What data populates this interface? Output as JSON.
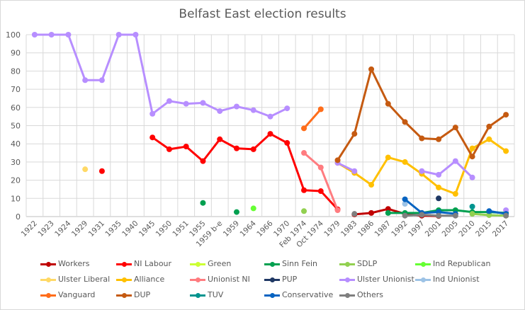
{
  "chart_data": {
    "type": "line",
    "title": "Belfast East election results",
    "xlabel": "",
    "ylabel": "",
    "ylim": [
      0,
      100
    ],
    "yticks": [
      "0",
      "10",
      "20",
      "30",
      "40",
      "50",
      "60",
      "70",
      "80",
      "90",
      "100"
    ],
    "grid": true,
    "legend_position": "bottom",
    "categories": [
      "1922",
      "1923",
      "1924",
      "1929",
      "1931",
      "1935",
      "1940",
      "1945",
      "1950",
      "1951",
      "1955",
      "1959 b-e",
      "1959",
      "1964",
      "1966",
      "1970",
      "Feb 1974",
      "Oct 1974",
      "1979",
      "1983",
      "1986",
      "1987",
      "1992",
      "1997",
      "2001",
      "2005",
      "2010",
      "2015",
      "2017"
    ],
    "series": [
      {
        "name": "Workers",
        "color": "#c00000",
        "values": [
          null,
          null,
          null,
          null,
          null,
          null,
          null,
          null,
          null,
          null,
          null,
          null,
          null,
          null,
          null,
          null,
          null,
          null,
          null,
          1.2,
          2.0,
          4.2,
          1.5,
          0.5,
          0.3,
          null,
          null,
          null,
          null
        ]
      },
      {
        "name": "NI Labour",
        "color": "#ff0000",
        "values": [
          null,
          null,
          null,
          null,
          25,
          null,
          null,
          43.5,
          37,
          38.5,
          30.5,
          42.5,
          37.5,
          37,
          45.5,
          40.5,
          14.5,
          14,
          4,
          null,
          null,
          null,
          null,
          null,
          null,
          null,
          null,
          null,
          null
        ]
      },
      {
        "name": "Green",
        "color": "#ccff33",
        "values": [
          null,
          null,
          null,
          null,
          null,
          null,
          null,
          null,
          null,
          null,
          null,
          null,
          null,
          null,
          null,
          null,
          null,
          null,
          null,
          null,
          null,
          null,
          null,
          null,
          null,
          null,
          null,
          null,
          null
        ]
      },
      {
        "name": "Sinn Fein",
        "color": "#00a050",
        "values": [
          null,
          null,
          null,
          null,
          null,
          null,
          null,
          null,
          null,
          null,
          7.5,
          null,
          2.5,
          null,
          null,
          null,
          null,
          null,
          null,
          null,
          null,
          2,
          2,
          2,
          3.5,
          3.5,
          2.5,
          2.5,
          2
        ]
      },
      {
        "name": "SDLP",
        "color": "#92d050",
        "values": [
          null,
          null,
          null,
          null,
          null,
          null,
          null,
          null,
          null,
          null,
          null,
          null,
          null,
          null,
          null,
          null,
          3,
          null,
          null,
          null,
          null,
          null,
          null,
          null,
          null,
          null,
          1.5,
          0.8,
          0.5
        ]
      },
      {
        "name": "Ind Republican",
        "color": "#66ff33",
        "values": [
          null,
          null,
          null,
          null,
          null,
          null,
          null,
          null,
          null,
          null,
          null,
          null,
          null,
          4.5,
          null,
          null,
          null,
          null,
          null,
          null,
          null,
          null,
          null,
          null,
          null,
          null,
          null,
          null,
          null
        ]
      },
      {
        "name": "Ulster Liberal",
        "color": "#ffd966",
        "values": [
          null,
          null,
          null,
          26,
          null,
          null,
          null,
          null,
          null,
          null,
          null,
          null,
          null,
          null,
          null,
          null,
          null,
          null,
          null,
          null,
          null,
          null,
          null,
          null,
          null,
          null,
          null,
          null,
          null
        ]
      },
      {
        "name": "Alliance",
        "color": "#ffc000",
        "values": [
          null,
          null,
          null,
          null,
          null,
          null,
          null,
          null,
          null,
          null,
          null,
          null,
          null,
          null,
          null,
          null,
          null,
          null,
          29.5,
          24,
          17.5,
          32.5,
          30,
          23.5,
          16,
          12.5,
          37.5,
          42.5,
          36
        ]
      },
      {
        "name": "Unionist NI",
        "color": "#ff7c80",
        "values": [
          null,
          null,
          null,
          null,
          null,
          null,
          null,
          null,
          null,
          null,
          null,
          null,
          null,
          null,
          null,
          null,
          35,
          27,
          3.5,
          null,
          null,
          null,
          null,
          null,
          null,
          null,
          null,
          null,
          null
        ]
      },
      {
        "name": "PUP",
        "color": "#1f3864",
        "values": [
          null,
          null,
          null,
          null,
          null,
          null,
          null,
          null,
          null,
          null,
          null,
          null,
          null,
          null,
          null,
          null,
          null,
          null,
          null,
          null,
          null,
          null,
          null,
          null,
          10,
          null,
          null,
          null,
          null
        ]
      },
      {
        "name": "Ulster Unionist",
        "color": "#b78eff",
        "values": [
          100,
          100,
          100,
          75,
          75,
          100,
          100,
          56.5,
          63.5,
          62,
          62.5,
          58,
          60.5,
          58.5,
          55,
          59.5,
          null,
          null,
          29.5,
          25,
          null,
          null,
          null,
          25,
          23,
          30.5,
          21.5,
          null,
          3.5
        ]
      },
      {
        "name": "Ind Unionist",
        "color": "#9dc3e6",
        "values": [
          null,
          null,
          null,
          null,
          null,
          null,
          null,
          null,
          null,
          null,
          null,
          null,
          null,
          null,
          null,
          null,
          null,
          null,
          null,
          null,
          null,
          null,
          7,
          null,
          null,
          null,
          null,
          null,
          null
        ]
      },
      {
        "name": "Vanguard",
        "color": "#ff6d1a",
        "values": [
          null,
          null,
          null,
          null,
          null,
          null,
          null,
          null,
          null,
          null,
          null,
          null,
          null,
          null,
          null,
          null,
          48.5,
          59,
          null,
          null,
          null,
          null,
          null,
          null,
          null,
          null,
          null,
          null,
          null
        ]
      },
      {
        "name": "DUP",
        "color": "#c55a11",
        "values": [
          null,
          null,
          null,
          null,
          null,
          null,
          null,
          null,
          null,
          null,
          null,
          null,
          null,
          null,
          null,
          null,
          null,
          null,
          31,
          45.5,
          81,
          62,
          52,
          43,
          42.5,
          49,
          33,
          49.5,
          56
        ]
      },
      {
        "name": "TUV",
        "color": "#00948f",
        "values": [
          null,
          null,
          null,
          null,
          null,
          null,
          null,
          null,
          null,
          null,
          null,
          null,
          null,
          null,
          null,
          null,
          null,
          null,
          null,
          null,
          null,
          null,
          null,
          null,
          null,
          null,
          5.5,
          null,
          null
        ]
      },
      {
        "name": "Conservative",
        "color": "#0563c1",
        "values": [
          null,
          null,
          null,
          null,
          null,
          null,
          null,
          null,
          null,
          null,
          null,
          null,
          null,
          null,
          null,
          null,
          null,
          null,
          null,
          null,
          null,
          null,
          9.5,
          2,
          2.5,
          1.5,
          null,
          3,
          1.5
        ]
      },
      {
        "name": "Others",
        "color": "#7f7f7f",
        "values": [
          null,
          null,
          null,
          null,
          null,
          null,
          null,
          null,
          null,
          null,
          null,
          null,
          null,
          null,
          null,
          null,
          null,
          null,
          null,
          1.5,
          null,
          null,
          0.5,
          1,
          0.5,
          0.5,
          null,
          null,
          0.5
        ]
      }
    ]
  }
}
